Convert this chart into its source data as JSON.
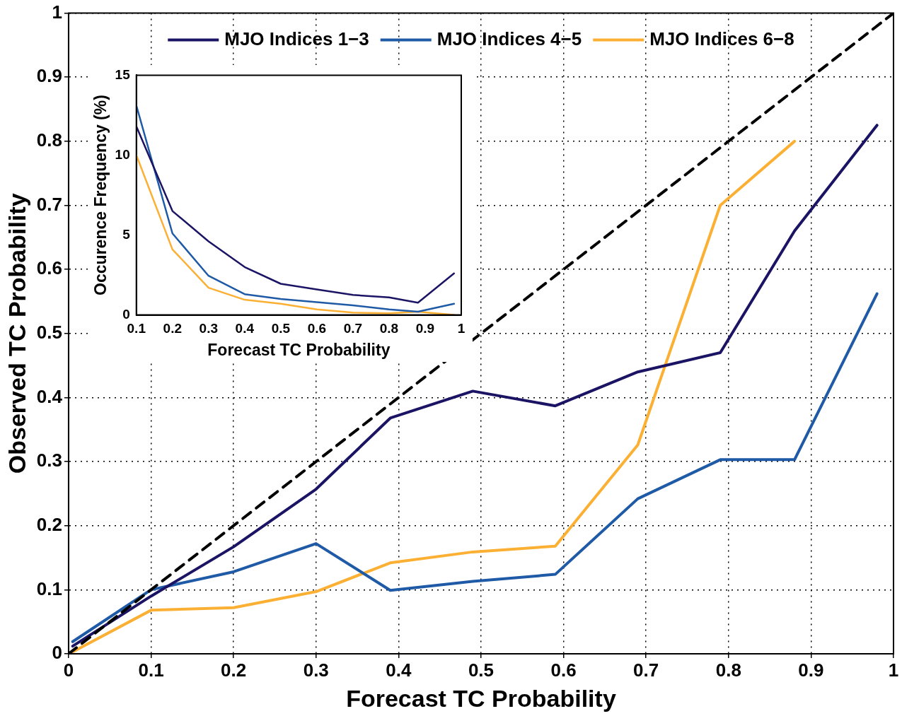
{
  "chart_data": [
    {
      "type": "line",
      "xlabel": "Forecast TC Probability",
      "ylabel": "Observed TC Probability",
      "x": [
        0.005,
        0.1,
        0.2,
        0.3,
        0.39,
        0.49,
        0.59,
        0.69,
        0.79,
        0.88,
        0.98
      ],
      "xlim": [
        0,
        1
      ],
      "ylim": [
        0,
        1
      ],
      "xticks": [
        0,
        0.1,
        0.2,
        0.3,
        0.4,
        0.5,
        0.6,
        0.7,
        0.8,
        0.9,
        1
      ],
      "yticks": [
        0,
        0.1,
        0.2,
        0.3,
        0.4,
        0.5,
        0.6,
        0.7,
        0.8,
        0.9,
        1
      ],
      "grid": true,
      "legend": "top",
      "marker": "none",
      "series": [
        {
          "type": "line",
          "x": [
            0,
            1
          ],
          "values": [
            0,
            1
          ],
          "color": "#000000",
          "line_style": "dashed"
        },
        {
          "name": "MJO Indices 1−3",
          "color": "#1b1464",
          "values": [
            0.012,
            0.09,
            0.167,
            0.257,
            0.368,
            0.41,
            0.387,
            0.44,
            0.47,
            0.66,
            0.825
          ]
        },
        {
          "name": "MJO Indices 4−5",
          "color": "#1f5aa6",
          "values": [
            0.019,
            0.1,
            0.128,
            0.172,
            0.099,
            0.113,
            0.124,
            0.242,
            0.303,
            0.303,
            0.562
          ]
        },
        {
          "name": "MJO Indices 6−8",
          "color": "#fbb034",
          "values": [
            0.003,
            0.068,
            0.072,
            0.097,
            0.142,
            0.159,
            0.168,
            0.326,
            0.7,
            0.8,
            null
          ]
        }
      ]
    },
    {
      "type": "line",
      "xlabel": "Forecast TC Probability",
      "ylabel": "Occurence Frequency (%)",
      "x": [
        0.1,
        0.2,
        0.3,
        0.4,
        0.5,
        0.6,
        0.7,
        0.8,
        0.88,
        0.98
      ],
      "xlim": [
        0.1,
        1
      ],
      "ylim": [
        0,
        15
      ],
      "xticks": [
        0.1,
        0.2,
        0.3,
        0.4,
        0.5,
        0.6,
        0.7,
        0.8,
        0.9,
        1
      ],
      "yticks": [
        0,
        5,
        10,
        15
      ],
      "marker": "none",
      "series": [
        {
          "color": "#1b1464",
          "values": [
            11.8,
            6.5,
            4.6,
            3.0,
            1.95,
            1.6,
            1.25,
            1.1,
            0.77,
            2.6
          ]
        },
        {
          "color": "#1f5aa6",
          "values": [
            13.1,
            5.1,
            2.45,
            1.3,
            1.0,
            0.8,
            0.6,
            0.35,
            0.2,
            0.7
          ]
        },
        {
          "color": "#fbb034",
          "values": [
            10,
            4.1,
            1.7,
            0.95,
            0.7,
            0.35,
            0.15,
            0.1,
            0.2,
            0
          ]
        }
      ]
    }
  ]
}
